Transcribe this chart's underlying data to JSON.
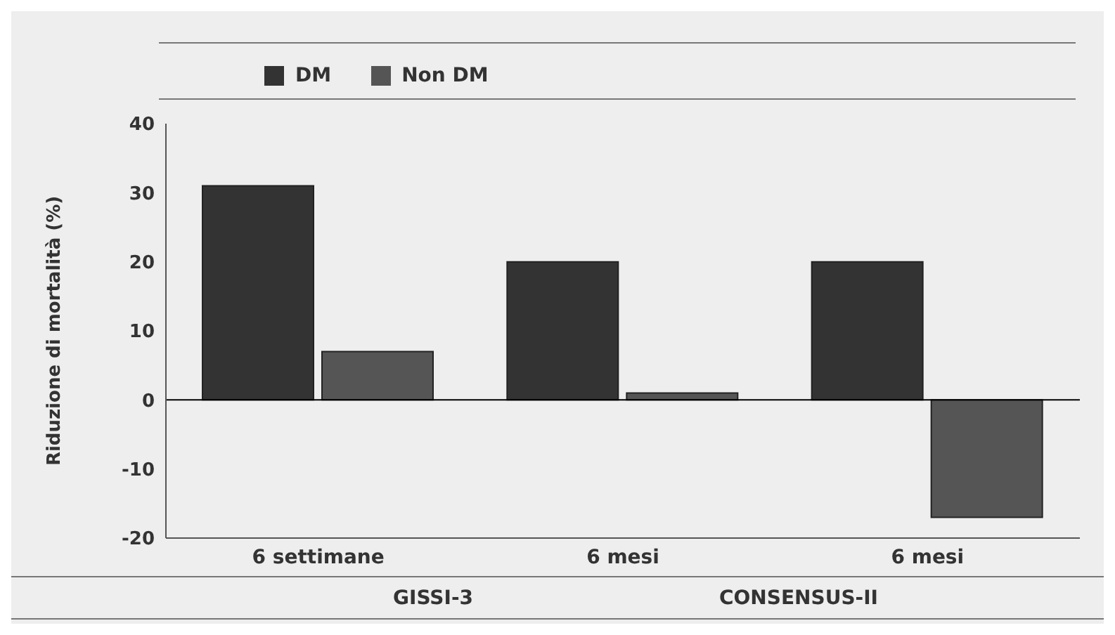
{
  "chart_data": {
    "type": "bar",
    "ylabel": "Riduzione di mortalità (%)",
    "categories": [
      "6 settimane",
      "6 mesi",
      "6 mesi"
    ],
    "series": [
      {
        "name": "DM",
        "color": "#333333",
        "values": [
          31,
          20,
          20
        ]
      },
      {
        "name": "Non DM",
        "color": "#555555",
        "values": [
          7,
          1,
          -17
        ]
      }
    ],
    "ylim": [
      -20,
      40
    ],
    "yticks": [
      -20,
      -10,
      0,
      10,
      20,
      30,
      40
    ],
    "ref_lines": [
      {
        "axis": "y",
        "value": 0,
        "color": "#000000"
      }
    ],
    "legend": "top left",
    "grid": false,
    "annotations": [
      "GISSI-3",
      "CONSENSUS-II"
    ]
  }
}
